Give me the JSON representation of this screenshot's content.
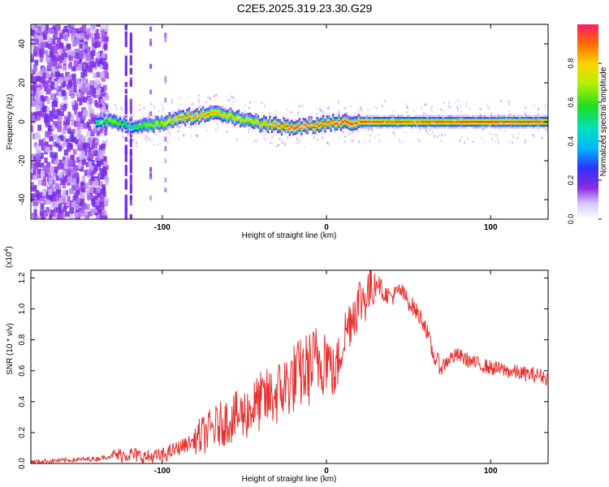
{
  "figure": {
    "title": "C2E5.2025.319.23.30.G29"
  },
  "chart_data": [
    {
      "type": "heatmap",
      "title": "C2E5.2025.319.23.30.G29",
      "xlabel": "Height of straight line (km)",
      "ylabel": "Frequency (Hz)",
      "xlim": [
        -180,
        135
      ],
      "ylim": [
        -50,
        50
      ],
      "xticks": [
        -100,
        0,
        100
      ],
      "xtick_labels": [
        "-100",
        "0",
        "100"
      ],
      "yticks": [
        -40,
        -20,
        0,
        20,
        40
      ],
      "ytick_labels": [
        "-40",
        "-20",
        "0",
        "20",
        "40"
      ],
      "colorbar": {
        "label": "Normalized spectral amplitude",
        "range": [
          0,
          1
        ],
        "ticks": [
          0.0,
          0.2,
          0.4,
          0.6,
          0.8
        ],
        "tick_labels": [
          "0.0",
          "0.2",
          "0.4",
          "0.6",
          "0.8"
        ]
      },
      "ridge": {
        "description_points_x": [
          -140,
          -130,
          -120,
          -110,
          -100,
          -90,
          -80,
          -70,
          -60,
          -50,
          -40,
          -30,
          -20,
          -10,
          0,
          10,
          20,
          40,
          60,
          80,
          100,
          120,
          135
        ],
        "frequency_hz": [
          0,
          0,
          -2,
          -2,
          -1,
          2,
          3,
          4,
          3,
          1,
          -1,
          -2,
          -3,
          -2,
          -1,
          0,
          0,
          0,
          0,
          0,
          0,
          0,
          0
        ],
        "peak_amplitude": [
          0.55,
          0.7,
          0.5,
          0.65,
          0.75,
          0.85,
          0.9,
          0.85,
          0.8,
          0.75,
          0.8,
          0.9,
          0.95,
          0.95,
          0.9,
          0.95,
          0.95,
          0.9,
          0.9,
          0.92,
          0.95,
          0.95,
          0.9
        ]
      }
    },
    {
      "type": "line",
      "title": "",
      "xlabel": "Height of straight line (km)",
      "ylabel": "SNR (10 * v/v)",
      "scale_label": "(x10",
      "scale_exponent": "4",
      "scale_close": ")",
      "xlim": [
        -180,
        135
      ],
      "ylim": [
        0,
        1.25
      ],
      "xticks": [
        -100,
        0,
        100
      ],
      "xtick_labels": [
        "-100",
        "0",
        "100"
      ],
      "yticks": [
        0.0,
        0.2,
        0.4,
        0.6,
        0.8,
        1.0,
        1.2
      ],
      "ytick_labels": [
        "0.0",
        "0.2",
        "0.4",
        "0.6",
        "0.8",
        "1.0",
        "1.2"
      ],
      "series": [
        {
          "name": "SNR",
          "color": "#e8312f",
          "x": [
            -180,
            -160,
            -140,
            -130,
            -120,
            -110,
            -100,
            -90,
            -80,
            -70,
            -60,
            -50,
            -40,
            -30,
            -20,
            -10,
            0,
            5,
            10,
            15,
            20,
            25,
            30,
            35,
            40,
            45,
            50,
            55,
            60,
            65,
            70,
            75,
            80,
            90,
            100,
            110,
            120,
            130,
            135
          ],
          "values": [
            0.01,
            0.02,
            0.03,
            0.05,
            0.06,
            0.04,
            0.05,
            0.1,
            0.15,
            0.22,
            0.28,
            0.32,
            0.4,
            0.45,
            0.55,
            0.62,
            0.72,
            0.55,
            0.8,
            0.95,
            1.05,
            1.1,
            1.2,
            1.1,
            1.08,
            1.12,
            1.05,
            0.98,
            0.9,
            0.7,
            0.62,
            0.68,
            0.7,
            0.65,
            0.62,
            0.6,
            0.58,
            0.57,
            0.55
          ]
        }
      ]
    }
  ]
}
